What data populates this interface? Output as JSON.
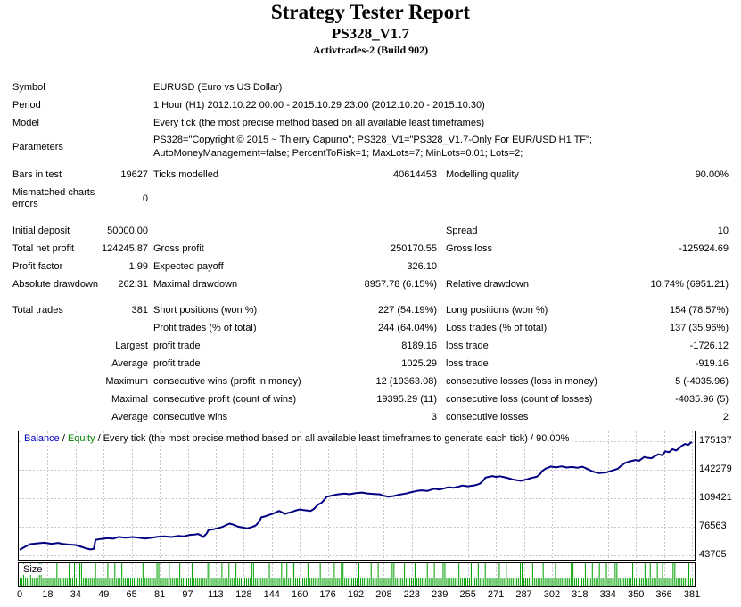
{
  "header": {
    "title": "Strategy Tester Report",
    "subtitle": "PS328_V1.7",
    "build": "Activtrades-2 (Build 902)"
  },
  "info_rows": [
    {
      "label": "Symbol",
      "value": "EURUSD (Euro vs US Dollar)",
      "tall": false
    },
    {
      "label": "Period",
      "value": "1 Hour (H1) 2012.10.22 00:00 - 2015.10.29 23:00 (2012.10.20 - 2015.10.30)",
      "tall": false
    },
    {
      "label": "Model",
      "value": "Every tick (the most precise method based on all available least timeframes)",
      "tall": false
    },
    {
      "label": "Parameters",
      "value": "PS328=\"Copyright © 2015 ~ Thierry Capurro\"; PS328_V1=\"PS328_V1.7-Only For EUR/USD H1 TF\"; AutoMoneyManagement=false; PercentToRisk=1; MaxLots=7; MinLots=0.01; Lots=2;",
      "tall": true
    }
  ],
  "stats_table": {
    "rows": [
      {
        "c1l": "Bars in test",
        "c1v": "19627",
        "c2l": "Ticks modelled",
        "c2v": "40614453",
        "c3l": "Modelling quality",
        "c3v": "90.00%",
        "tall": false,
        "gap": false
      },
      {
        "c1l": "Mismatched charts errors",
        "c1v": "0",
        "c2l": "",
        "c2v": "",
        "c3l": "",
        "c3v": "",
        "tall": true,
        "gap": false
      },
      {
        "c1l": "Initial deposit",
        "c1v": "50000.00",
        "c2l": "",
        "c2v": "",
        "c3l": "Spread",
        "c3v": "10",
        "tall": false,
        "gap": true
      },
      {
        "c1l": "Total net profit",
        "c1v": "124245.87",
        "c2l": "Gross profit",
        "c2v": "250170.55",
        "c3l": "Gross loss",
        "c3v": "-125924.69",
        "tall": false,
        "gap": false
      },
      {
        "c1l": "Profit factor",
        "c1v": "1.99",
        "c2l": "Expected payoff",
        "c2v": "326.10",
        "c3l": "",
        "c3v": "",
        "tall": false,
        "gap": false
      },
      {
        "c1l": "Absolute drawdown",
        "c1v": "262.31",
        "c2l": "Maximal drawdown",
        "c2v": "8957.78 (6.15%)",
        "c3l": "Relative drawdown",
        "c3v": "10.74% (6951.21)",
        "tall": false,
        "gap": false
      },
      {
        "c1l": "Total trades",
        "c1v": "381",
        "c2l": "Short positions (won %)",
        "c2v": "227 (54.19%)",
        "c3l": "Long positions (won %)",
        "c3v": "154 (78.57%)",
        "tall": false,
        "gap": true
      },
      {
        "c1l": "",
        "c1v": "",
        "c2l": "Profit trades (% of total)",
        "c2v": "244 (64.04%)",
        "c3l": "Loss trades (% of total)",
        "c3v": "137 (35.96%)",
        "tall": false,
        "gap": false
      },
      {
        "c1l": "",
        "c1v": "Largest",
        "c2l": "profit trade",
        "c2v": "8189.16",
        "c3l": "loss trade",
        "c3v": "-1726.12",
        "tall": false,
        "gap": false
      },
      {
        "c1l": "",
        "c1v": "Average",
        "c2l": "profit trade",
        "c2v": "1025.29",
        "c3l": "loss trade",
        "c3v": "-919.16",
        "tall": false,
        "gap": false
      },
      {
        "c1l": "",
        "c1v": "Maximum",
        "c2l": "consecutive wins (profit in money)",
        "c2v": "12 (19363.08)",
        "c3l": "consecutive losses (loss in money)",
        "c3v": "5 (-4035.96)",
        "tall": false,
        "gap": false
      },
      {
        "c1l": "",
        "c1v": "Maximal",
        "c2l": "consecutive profit (count of wins)",
        "c2v": "19395.29 (11)",
        "c3l": "consecutive loss (count of losses)",
        "c3v": "-4035.96 (5)",
        "tall": false,
        "gap": false
      },
      {
        "c1l": "",
        "c1v": "Average",
        "c2l": "consecutive wins",
        "c2v": "3",
        "c3l": "consecutive losses",
        "c3v": "2",
        "tall": false,
        "gap": false
      }
    ]
  },
  "chart_data": [
    {
      "type": "line",
      "title": "Balance curve",
      "legend": {
        "balance_label": "Balance",
        "sep1": " / ",
        "equity_label": "Equity",
        "suffix": " / Every tick (the most precise method based on all available least timeframes to generate each tick) / 90.00%"
      },
      "colors": {
        "balance_line": "#000080",
        "balance_text": "#0000C8",
        "equity_text": "#008000",
        "grid": "#C8C8C8"
      },
      "x_range": [
        0,
        381
      ],
      "ylim": [
        43705,
        175137
      ],
      "y_ticks": [
        175137,
        142279,
        109421,
        76563,
        43705
      ],
      "x_ticks": [
        0,
        18,
        34,
        49,
        65,
        81,
        97,
        113,
        128,
        144,
        160,
        176,
        192,
        208,
        223,
        239,
        255,
        271,
        287,
        302,
        318,
        334,
        350,
        366,
        381
      ],
      "grid": true,
      "legend_position": "top-left",
      "series": [
        {
          "name": "Balance",
          "points": [
            [
              0,
              50000
            ],
            [
              3,
              53500
            ],
            [
              6,
              56500
            ],
            [
              10,
              57500
            ],
            [
              14,
              58200
            ],
            [
              18,
              57000
            ],
            [
              22,
              58000
            ],
            [
              24,
              57000
            ],
            [
              28,
              56000
            ],
            [
              32,
              55500
            ],
            [
              35,
              53500
            ],
            [
              38,
              51500
            ],
            [
              40,
              50500
            ],
            [
              42,
              51000
            ],
            [
              43,
              61500
            ],
            [
              46,
              62500
            ],
            [
              50,
              63500
            ],
            [
              53,
              62800
            ],
            [
              56,
              64900
            ],
            [
              60,
              64000
            ],
            [
              64,
              64800
            ],
            [
              68,
              63800
            ],
            [
              71,
              63000
            ],
            [
              75,
              64000
            ],
            [
              78,
              65000
            ],
            [
              82,
              65600
            ],
            [
              86,
              64800
            ],
            [
              90,
              66000
            ],
            [
              93,
              65500
            ],
            [
              96,
              67000
            ],
            [
              99,
              67500
            ],
            [
              101,
              68200
            ],
            [
              103,
              66500
            ],
            [
              104,
              64500
            ],
            [
              106,
              69000
            ],
            [
              107,
              72900
            ],
            [
              110,
              73800
            ],
            [
              112,
              74700
            ],
            [
              115,
              76500
            ],
            [
              117,
              78500
            ],
            [
              119,
              80200
            ],
            [
              121,
              79000
            ],
            [
              124,
              76600
            ],
            [
              127,
              75500
            ],
            [
              129,
              74700
            ],
            [
              132,
              76500
            ],
            [
              134,
              78400
            ],
            [
              136,
              83000
            ],
            [
              137,
              87500
            ],
            [
              139,
              88500
            ],
            [
              141,
              90000
            ],
            [
              143,
              91200
            ],
            [
              145,
              93000
            ],
            [
              147,
              94800
            ],
            [
              149,
              93000
            ],
            [
              150,
              91200
            ],
            [
              152,
              92500
            ],
            [
              154,
              93500
            ],
            [
              156,
              95000
            ],
            [
              158,
              96200
            ],
            [
              159,
              96600
            ],
            [
              161,
              95800
            ],
            [
              163,
              95200
            ],
            [
              165,
              94800
            ],
            [
              167,
              97500
            ],
            [
              169,
              102000
            ],
            [
              171,
              104000
            ],
            [
              173,
              108500
            ],
            [
              174,
              111200
            ],
            [
              177,
              112500
            ],
            [
              180,
              113800
            ],
            [
              184,
              114900
            ],
            [
              187,
              114000
            ],
            [
              190,
              115200
            ],
            [
              194,
              116000
            ],
            [
              197,
              115000
            ],
            [
              200,
              114500
            ],
            [
              204,
              113900
            ],
            [
              206,
              112500
            ],
            [
              209,
              111200
            ],
            [
              212,
              112000
            ],
            [
              215,
              113500
            ],
            [
              219,
              114900
            ],
            [
              222,
              116500
            ],
            [
              225,
              117800
            ],
            [
              228,
              118600
            ],
            [
              231,
              117800
            ],
            [
              235,
              120400
            ],
            [
              238,
              119500
            ],
            [
              241,
              121000
            ],
            [
              243,
              122200
            ],
            [
              246,
              121500
            ],
            [
              249,
              123000
            ],
            [
              251,
              124100
            ],
            [
              254,
              123200
            ],
            [
              257,
              124000
            ],
            [
              259,
              124800
            ],
            [
              261,
              126500
            ],
            [
              263,
              130500
            ],
            [
              264,
              133200
            ],
            [
              266,
              134200
            ],
            [
              268,
              135000
            ],
            [
              270,
              134000
            ],
            [
              272,
              134800
            ],
            [
              275,
              133500
            ],
            [
              277,
              132500
            ],
            [
              279,
              131300
            ],
            [
              281,
              130500
            ],
            [
              284,
              129500
            ],
            [
              286,
              130500
            ],
            [
              288,
              131500
            ],
            [
              290,
              132800
            ],
            [
              293,
              134200
            ],
            [
              295,
              137500
            ],
            [
              296,
              140500
            ],
            [
              298,
              143500
            ],
            [
              301,
              146000
            ],
            [
              304,
              145000
            ],
            [
              307,
              146200
            ],
            [
              310,
              144800
            ],
            [
              313,
              145500
            ],
            [
              316,
              144500
            ],
            [
              319,
              145800
            ],
            [
              322,
              143000
            ],
            [
              325,
              140000
            ],
            [
              328,
              138500
            ],
            [
              331,
              139000
            ],
            [
              333,
              139500
            ],
            [
              336,
              141500
            ],
            [
              339,
              143500
            ],
            [
              341,
              147000
            ],
            [
              343,
              150000
            ],
            [
              346,
              152000
            ],
            [
              349,
              153500
            ],
            [
              351,
              152500
            ],
            [
              354,
              157000
            ],
            [
              356,
              156000
            ],
            [
              358,
              155500
            ],
            [
              360,
              158000
            ],
            [
              362,
              160000
            ],
            [
              364,
              159000
            ],
            [
              366,
              163500
            ],
            [
              368,
              162500
            ],
            [
              370,
              166000
            ],
            [
              372,
              164500
            ],
            [
              374,
              167500
            ],
            [
              375,
              169500
            ],
            [
              377,
              172000
            ],
            [
              379,
              171000
            ],
            [
              380,
              173000
            ],
            [
              381,
              174246
            ]
          ]
        }
      ]
    },
    {
      "type": "bar",
      "title": "Trade size",
      "label": "Size",
      "bar_color": "#00A000",
      "grid_color": "#C8C8C8",
      "ylim": [
        0,
        7
      ],
      "values_pattern": "227222722227722222222722222272272277222222272222227222722272222222722272222222772222272222272222227222222227722222272227222722272222772222222272222227227227722222227222222722222227222772222222272222227222722222227722222722222722222272227222277222222272222227222722272222222722272222222772222272222272222227222222227722222272227222722272222772222222272222227227222722722222772222222722"
    }
  ]
}
